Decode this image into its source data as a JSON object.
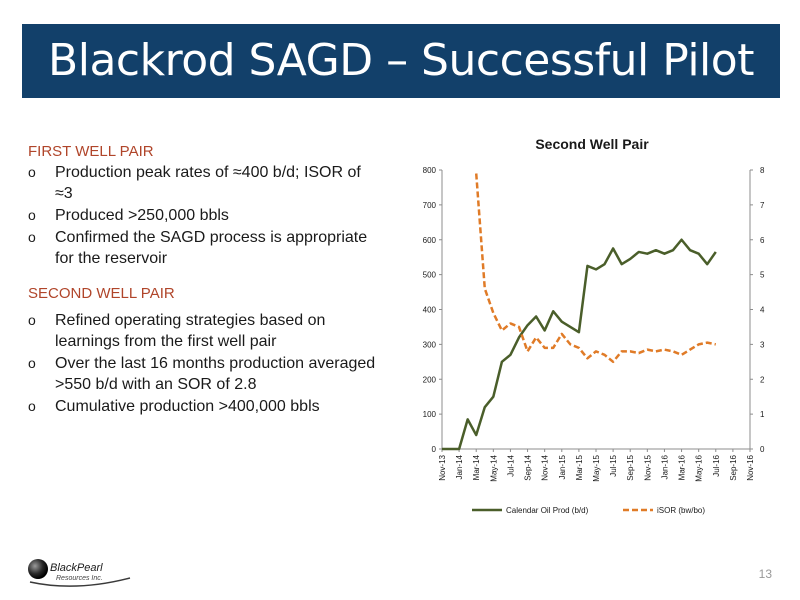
{
  "slide": {
    "title": "Blackrod SAGD – Successful Pilot",
    "page_number": "13"
  },
  "first_well_pair": {
    "heading": "FIRST WELL PAIR",
    "bullets": [
      "Production peak rates of ≈400 b/d; ISOR of ≈3",
      "Produced >250,000 bbls",
      "Confirmed the SAGD process is appropriate for the reservoir"
    ]
  },
  "second_well_pair": {
    "heading": "SECOND WELL PAIR",
    "bullets": [
      "Refined operating strategies based on learnings from the first well pair",
      "Over the last 16 months production averaged >550 b/d with an SOR of 2.8",
      "Cumulative production >400,000 bbls"
    ]
  },
  "bullet_marker": "o",
  "logo": {
    "name": "BlackPearl",
    "subtitle": "Resources Inc."
  },
  "colors": {
    "title_bg": "#12406a",
    "section_head": "#b0452a",
    "oil_series": "#4a5e2a",
    "isor_series": "#e07b27"
  },
  "chart_data": {
    "type": "line",
    "title": "Second Well Pair",
    "x": [
      "Nov-13",
      "Dec-13",
      "Jan-14",
      "Feb-14",
      "Mar-14",
      "Apr-14",
      "May-14",
      "Jun-14",
      "Jul-14",
      "Aug-14",
      "Sep-14",
      "Oct-14",
      "Nov-14",
      "Dec-14",
      "Jan-15",
      "Feb-15",
      "Mar-15",
      "Apr-15",
      "May-15",
      "Jun-15",
      "Jul-15",
      "Aug-15",
      "Sep-15",
      "Oct-15",
      "Nov-15",
      "Dec-15",
      "Jan-16",
      "Feb-16",
      "Mar-16",
      "Apr-16",
      "May-16",
      "Jun-16",
      "Jul-16",
      "Aug-16",
      "Sep-16",
      "Oct-16",
      "Nov-16"
    ],
    "x_tick_labels": [
      "Nov-13",
      "Jan-14",
      "Mar-14",
      "May-14",
      "Jul-14",
      "Sep-14",
      "Nov-14",
      "Jan-15",
      "Mar-15",
      "May-15",
      "Jul-15",
      "Sep-15",
      "Nov-15",
      "Jan-16",
      "Mar-16",
      "May-16",
      "Jul-16",
      "Sep-16",
      "Nov-16"
    ],
    "ylim": [
      0,
      800
    ],
    "y_ticks": [
      0,
      100,
      200,
      300,
      400,
      500,
      600,
      700,
      800
    ],
    "y2lim": [
      0,
      8
    ],
    "y2_ticks": [
      0,
      1,
      2,
      3,
      4,
      5,
      6,
      7,
      8
    ],
    "grid": false,
    "legend_position": "bottom",
    "series": [
      {
        "name": "Calendar Oil Prod (b/d)",
        "axis": "left",
        "style": "solid",
        "values": [
          0,
          0,
          0,
          85,
          40,
          120,
          150,
          250,
          270,
          320,
          355,
          380,
          340,
          395,
          365,
          350,
          335,
          525,
          515,
          530,
          575,
          530,
          545,
          565,
          560,
          570,
          560,
          570,
          600,
          570,
          560,
          530,
          565,
          null,
          null,
          null,
          null
        ]
      },
      {
        "name": "iSOR (bw/bo)",
        "axis": "right",
        "style": "dashed",
        "values": [
          null,
          null,
          null,
          null,
          7.9,
          4.6,
          3.9,
          3.4,
          3.6,
          3.5,
          2.8,
          3.2,
          2.9,
          2.9,
          3.3,
          3.0,
          2.9,
          2.6,
          2.8,
          2.7,
          2.5,
          2.8,
          2.8,
          2.75,
          2.85,
          2.8,
          2.85,
          2.8,
          2.7,
          2.85,
          3.0,
          3.05,
          3.0,
          null,
          null,
          null,
          null
        ]
      }
    ]
  }
}
